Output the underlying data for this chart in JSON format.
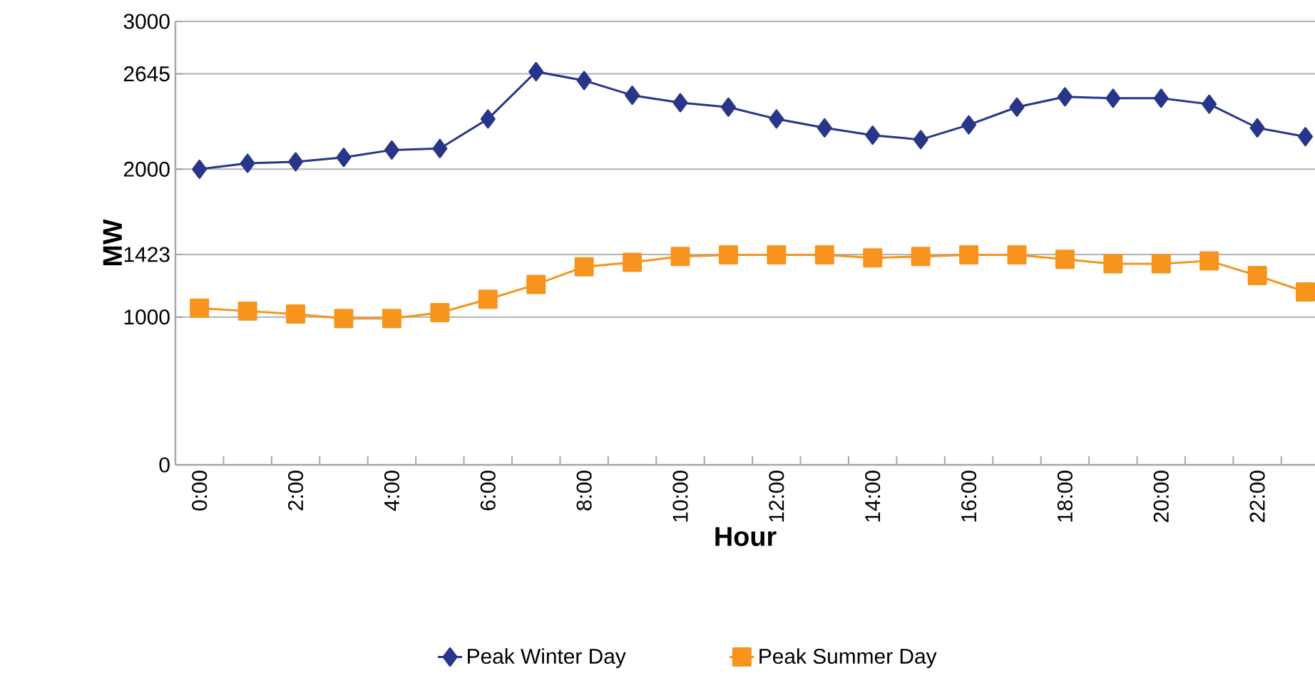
{
  "chart_data": {
    "type": "line",
    "xlabel": "Hour",
    "ylabel": "MW",
    "categories": [
      "0:00",
      null,
      "2:00",
      null,
      "4:00",
      null,
      "6:00",
      null,
      "8:00",
      null,
      "10:00",
      null,
      "12:00",
      null,
      "14:00",
      null,
      "16:00",
      null,
      "18:00",
      null,
      "20:00",
      null,
      "22:00",
      null
    ],
    "series": [
      {
        "name": "Peak Winter Day",
        "color": "#283588",
        "marker": "diamond",
        "values": [
          2000,
          2040,
          2050,
          2080,
          2130,
          2140,
          2340,
          2660,
          2600,
          2500,
          2450,
          2420,
          2340,
          2280,
          2230,
          2200,
          2300,
          2420,
          2490,
          2480,
          2480,
          2440,
          2280,
          2220
        ]
      },
      {
        "name": "Peak Summer Day",
        "color": "#f7941d",
        "marker": "square",
        "values": [
          1060,
          1040,
          1020,
          990,
          990,
          1030,
          1120,
          1220,
          1340,
          1370,
          1410,
          1420,
          1420,
          1420,
          1400,
          1410,
          1420,
          1420,
          1390,
          1360,
          1360,
          1380,
          1280,
          1170
        ]
      }
    ],
    "ylim": [
      0,
      3000
    ],
    "yticks": [
      0,
      1000,
      1423,
      2000,
      2645,
      3000
    ],
    "grid": "y",
    "legend": "bottom",
    "line_style": "solid"
  }
}
